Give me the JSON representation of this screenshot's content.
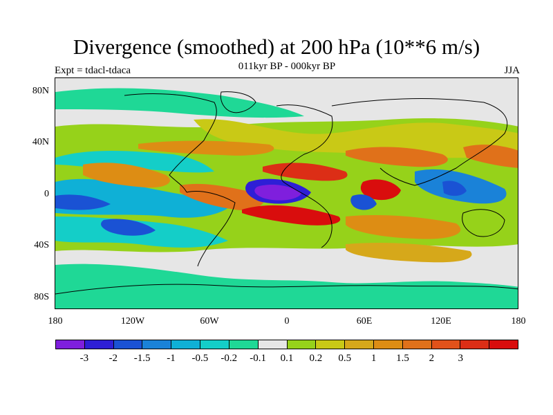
{
  "header": {
    "title": "Divergence (smoothed) at 200 hPa (10**6 m/s)",
    "subtitle": "011kyr BP - 000kyr BP",
    "left_label": "Expt = tdacl-tdaca",
    "right_label": "JJA"
  },
  "map": {
    "projection": "cylindrical equidistant",
    "lat_ticks": [
      "80N",
      "40N",
      "0",
      "40S",
      "80S"
    ],
    "lon_ticks": [
      "180",
      "120W",
      "60W",
      "0",
      "60E",
      "120E",
      "180"
    ]
  },
  "colorbar": {
    "colors": [
      "#7f1fdd",
      "#2e1fd6",
      "#1a52d4",
      "#1a82d8",
      "#0fb0d6",
      "#14cec8",
      "#1fd896",
      "#e6e6e6",
      "#96d21a",
      "#c9c916",
      "#d6a81a",
      "#dd8d14",
      "#e0711a",
      "#e1521a",
      "#dc2e16",
      "#d90d0d"
    ],
    "labels": [
      "-3",
      "-2",
      "-1.5",
      "-1",
      "-0.5",
      "-0.2",
      "-0.1",
      "0.1",
      "0.2",
      "0.5",
      "1",
      "1.5",
      "2",
      "3"
    ]
  },
  "features": {
    "max_convergence": "tropical Atlantic / West Africa near equator (< -3)",
    "max_divergence": "Arabian Sea / Indian subcontinent and equatorial Atlantic bands (> 3)"
  }
}
